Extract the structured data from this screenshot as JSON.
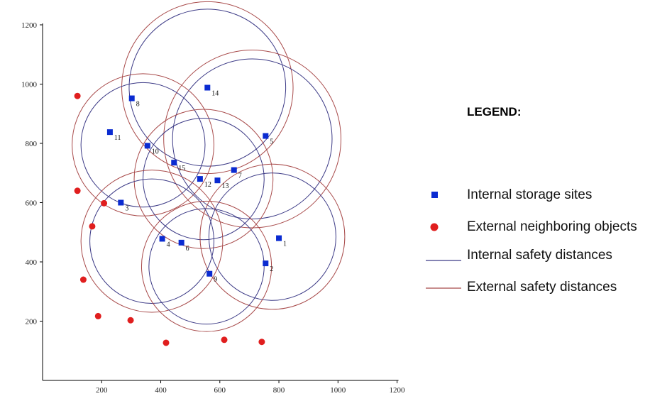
{
  "chart_data": {
    "type": "scatter",
    "xlim": [
      0,
      1200
    ],
    "ylim": [
      0,
      1200
    ],
    "x_ticks": [
      200,
      400,
      600,
      800,
      1000,
      1200
    ],
    "y_ticks": [
      200,
      400,
      600,
      800,
      1000,
      1200
    ],
    "grid": false,
    "title": "",
    "xlabel": "",
    "ylabel": "",
    "internal_sites": [
      {
        "label": "1",
        "x": 800,
        "y": 480
      },
      {
        "label": "2",
        "x": 755,
        "y": 395
      },
      {
        "label": "3",
        "x": 265,
        "y": 600
      },
      {
        "label": "4",
        "x": 405,
        "y": 478
      },
      {
        "label": "5",
        "x": 755,
        "y": 825
      },
      {
        "label": "6",
        "x": 470,
        "y": 465
      },
      {
        "label": "7",
        "x": 648,
        "y": 710
      },
      {
        "label": "8",
        "x": 302,
        "y": 952
      },
      {
        "label": "9",
        "x": 565,
        "y": 360
      },
      {
        "label": "10",
        "x": 355,
        "y": 792
      },
      {
        "label": "11",
        "x": 228,
        "y": 838
      },
      {
        "label": "12",
        "x": 533,
        "y": 680
      },
      {
        "label": "13",
        "x": 592,
        "y": 675
      },
      {
        "label": "14",
        "x": 558,
        "y": 988
      },
      {
        "label": "15",
        "x": 445,
        "y": 735
      }
    ],
    "external_objects": [
      {
        "x": 118,
        "y": 960
      },
      {
        "x": 118,
        "y": 640
      },
      {
        "x": 208,
        "y": 598
      },
      {
        "x": 168,
        "y": 520
      },
      {
        "x": 138,
        "y": 340
      },
      {
        "x": 188,
        "y": 217
      },
      {
        "x": 298,
        "y": 203
      },
      {
        "x": 418,
        "y": 127
      },
      {
        "x": 615,
        "y": 137
      },
      {
        "x": 742,
        "y": 130
      }
    ],
    "safety_circles": [
      {
        "cx": 558,
        "cy": 988,
        "r_internal": 265,
        "r_external": 290
      },
      {
        "cx": 710,
        "cy": 815,
        "r_internal": 270,
        "r_external": 300
      },
      {
        "cx": 340,
        "cy": 795,
        "r_internal": 210,
        "r_external": 240
      },
      {
        "cx": 545,
        "cy": 680,
        "r_internal": 205,
        "r_external": 235
      },
      {
        "cx": 778,
        "cy": 485,
        "r_internal": 215,
        "r_external": 245
      },
      {
        "cx": 370,
        "cy": 470,
        "r_internal": 210,
        "r_external": 240
      },
      {
        "cx": 555,
        "cy": 385,
        "r_internal": 195,
        "r_external": 220
      }
    ],
    "legend": {
      "title": "LEGEND:",
      "items": [
        {
          "symbol": "square",
          "color": "#0a2bd1",
          "label": "Internal storage sites"
        },
        {
          "symbol": "dot",
          "color": "#e01e1e",
          "label": "External neighboring objects"
        },
        {
          "symbol": "line",
          "color": "#3c3a86",
          "label": "Internal safety distances"
        },
        {
          "symbol": "line",
          "color": "#a84a4a",
          "label": "External safety distances"
        }
      ]
    },
    "colors": {
      "internal_site": "#0a2bd1",
      "external_object": "#e01e1e",
      "internal_circle": "#3c3a86",
      "external_circle": "#a84a4a",
      "axis": "#000000"
    }
  }
}
